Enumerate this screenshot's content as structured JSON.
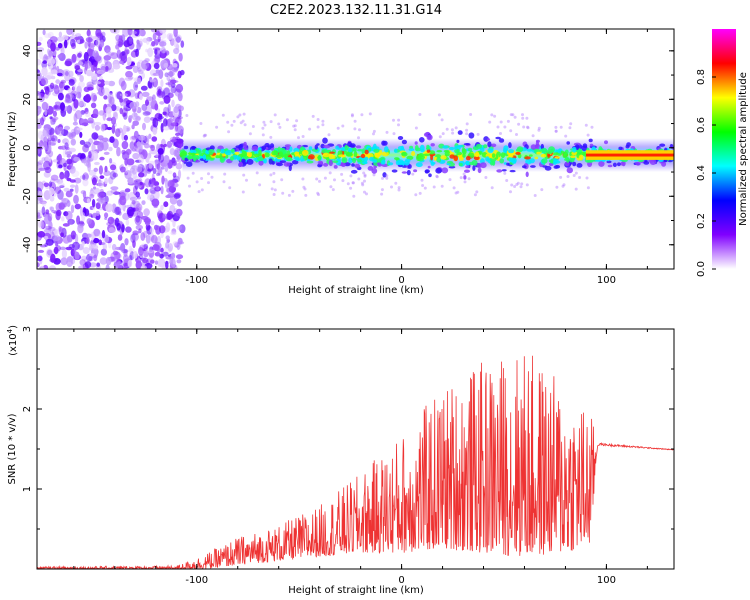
{
  "title": "C2E2.2023.132.11.31.G14",
  "chart_data": [
    {
      "type": "heatmap",
      "xlabel": "Height of straight line (km)",
      "ylabel": "Frequency (Hz)",
      "xlim": [
        -178,
        133
      ],
      "ylim": [
        -50,
        49
      ],
      "xticks": [
        -100,
        0,
        100
      ],
      "xtick_labels": [
        "-100",
        "0",
        "100"
      ],
      "yticks": [
        40,
        20,
        0,
        -20,
        -40
      ],
      "ytick_labels": [
        "40",
        "20",
        "0",
        "-20",
        "-40"
      ],
      "noise_region_x": [
        -178,
        -107
      ],
      "signal_region_x": [
        -107,
        133
      ],
      "signal_center_hz": -3,
      "colorbar": {
        "label": "Normalized spectral amplitude",
        "range": [
          0,
          1
        ],
        "ticks": [
          0.0,
          0.2,
          0.4,
          0.6,
          0.8
        ],
        "tick_labels": [
          "0.0",
          "0.2",
          "0.4",
          "0.6",
          "0.8"
        ],
        "colors": [
          "#ffffff",
          "#8000ff",
          "#0000ff",
          "#00ffff",
          "#00ff00",
          "#ffff00",
          "#ff0000",
          "#ff00ff"
        ]
      },
      "grid": false
    },
    {
      "type": "line",
      "xlabel": "Height of straight line (km)",
      "ylabel": "SNR (10 * v/v)",
      "y_multiplier_label": "(x10",
      "y_multiplier_exp": "4",
      "y_multiplier_close": ")",
      "xlim": [
        -178,
        133
      ],
      "ylim": [
        0,
        3
      ],
      "xticks": [
        -100,
        0,
        100
      ],
      "xtick_labels": [
        "-100",
        "0",
        "100"
      ],
      "yticks": [
        3,
        2,
        1
      ],
      "ytick_labels": [
        "3",
        "2",
        "1"
      ],
      "series": [
        {
          "color": "#ee3333",
          "envelope_x": [
            -178,
            -110,
            -95,
            -80,
            -60,
            -40,
            -20,
            0,
            20,
            40,
            60,
            80,
            92,
            96,
            133
          ],
          "envelope_max": [
            0.03,
            0.04,
            0.2,
            0.4,
            0.55,
            0.8,
            1.2,
            1.7,
            2.3,
            2.6,
            2.8,
            2.3,
            2.0,
            1.6,
            1.5
          ],
          "envelope_min": [
            0.0,
            0.0,
            0.0,
            0.05,
            0.1,
            0.15,
            0.2,
            0.2,
            0.25,
            0.2,
            0.15,
            0.2,
            0.3,
            1.52,
            1.48
          ]
        }
      ],
      "grid": false
    }
  ]
}
